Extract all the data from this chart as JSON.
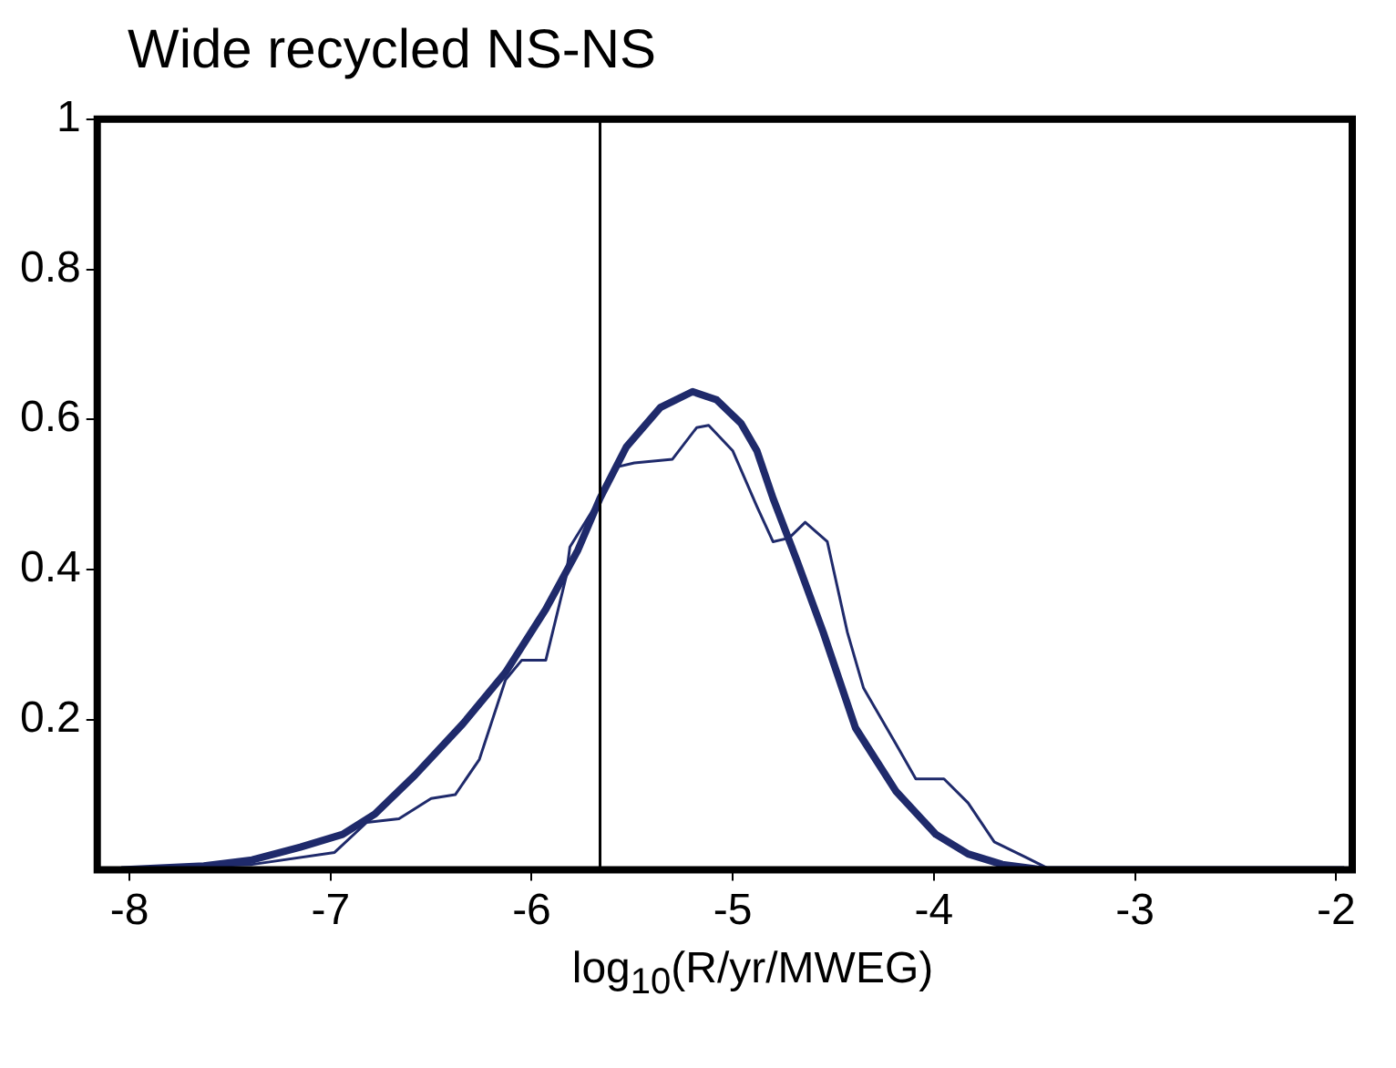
{
  "chart_data": {
    "type": "line",
    "title": "Wide recycled NS-NS",
    "xlabel": "log$_{10}$(R/yr/MWEG)",
    "xlim": [
      -8.16,
      -1.92
    ],
    "xticks": [
      -8,
      -7,
      -6,
      -5,
      -4,
      -3,
      -2
    ],
    "ylim": [
      0,
      1
    ],
    "yticks": [
      0.2,
      0.4,
      0.6,
      0.8,
      1
    ],
    "grid": false,
    "legend": false,
    "marker": "none",
    "line_style": "solid",
    "ref_lines": [
      {
        "axis": "x",
        "value": -5.66,
        "color": "#000000"
      }
    ],
    "series": [
      {
        "color": "#1f2a6b",
        "x": [
          -8.04,
          -7.63,
          -7.39,
          -7.15,
          -6.94,
          -6.78,
          -6.58,
          -6.34,
          -6.13,
          -5.93,
          -5.77,
          -5.66,
          -5.53,
          -5.36,
          -5.2,
          -5.08,
          -4.96,
          -4.88,
          -4.8,
          -4.68,
          -4.55,
          -4.39,
          -4.19,
          -3.99,
          -3.83,
          -3.66,
          -3.46,
          -1.96
        ],
        "values": [
          0,
          0.005,
          0.013,
          0.03,
          0.047,
          0.074,
          0.126,
          0.195,
          0.263,
          0.347,
          0.426,
          0.495,
          0.563,
          0.616,
          0.637,
          0.626,
          0.595,
          0.558,
          0.495,
          0.411,
          0.316,
          0.189,
          0.105,
          0.047,
          0.021,
          0.007,
          0,
          0
        ]
      },
      {
        "color": "#1f2a6b",
        "x": [
          -8.04,
          -7.39,
          -6.98,
          -6.82,
          -6.66,
          -6.5,
          -6.38,
          -6.26,
          -6.13,
          -6.05,
          -5.93,
          -5.83,
          -5.81,
          -5.66,
          -5.57,
          -5.49,
          -5.3,
          -5.18,
          -5.12,
          -5.0,
          -4.88,
          -4.8,
          -4.72,
          -4.64,
          -4.53,
          -4.43,
          -4.35,
          -4.19,
          -4.09,
          -3.95,
          -3.83,
          -3.7,
          -3.54,
          -3.42,
          -1.96
        ],
        "values": [
          0,
          0.007,
          0.023,
          0.063,
          0.068,
          0.095,
          0.1,
          0.147,
          0.253,
          0.279,
          0.279,
          0.389,
          0.43,
          0.495,
          0.537,
          0.542,
          0.547,
          0.589,
          0.592,
          0.558,
          0.484,
          0.437,
          0.442,
          0.463,
          0.437,
          0.316,
          0.242,
          0.168,
          0.121,
          0.121,
          0.089,
          0.037,
          0.016,
          0,
          0
        ]
      }
    ]
  }
}
